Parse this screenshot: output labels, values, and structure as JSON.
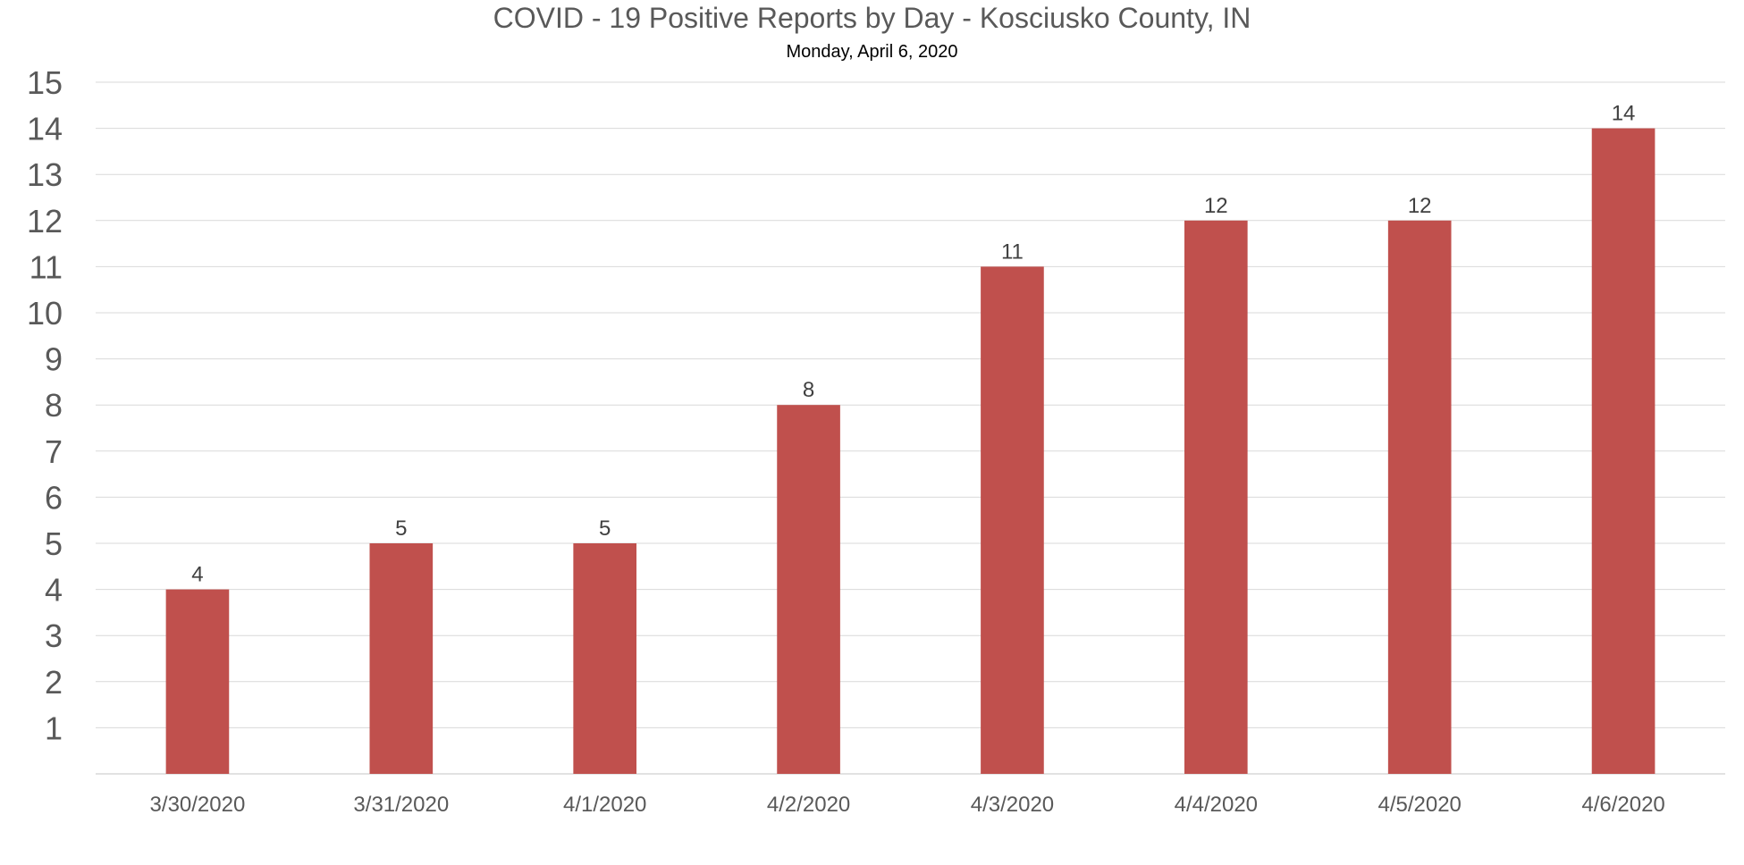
{
  "chart_data": {
    "type": "bar",
    "title": "COVID - 19 Positive Reports by Day - Kosciusko County, IN",
    "subtitle": "Monday, April 6, 2020",
    "xlabel": "",
    "ylabel": "",
    "categories": [
      "3/30/2020",
      "3/31/2020",
      "4/1/2020",
      "4/2/2020",
      "4/3/2020",
      "4/4/2020",
      "4/5/2020",
      "4/6/2020"
    ],
    "values": [
      4,
      5,
      5,
      8,
      11,
      12,
      12,
      14
    ],
    "ylim": [
      0,
      15
    ],
    "yticks": [
      1,
      2,
      3,
      4,
      5,
      6,
      7,
      8,
      9,
      10,
      11,
      12,
      13,
      14,
      15
    ],
    "grid": true,
    "legend": "none",
    "bar_color": "#c0504d",
    "gridline_color": "#d9d9d9",
    "data_labels": true
  }
}
